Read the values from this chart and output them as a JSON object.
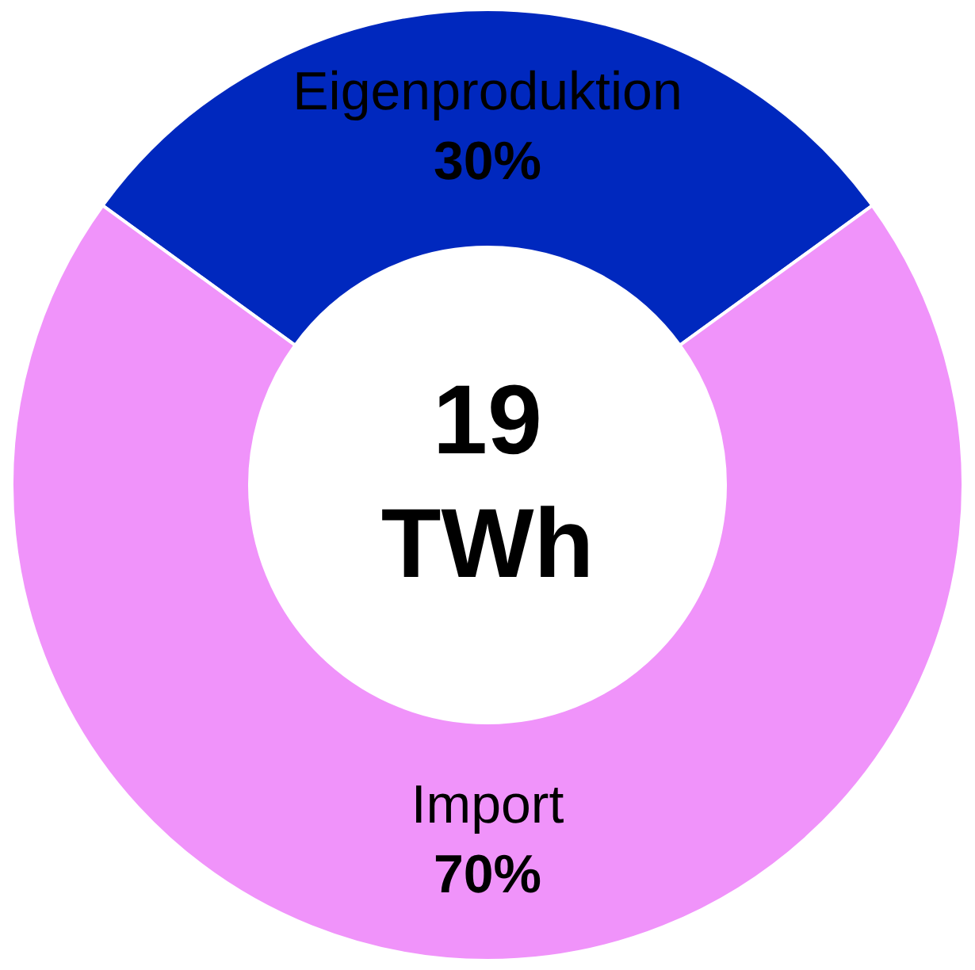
{
  "chart_data": {
    "type": "donut",
    "categories": [
      "Eigenproduktion",
      "Import"
    ],
    "values": [
      30,
      70
    ],
    "colors": [
      "#0028be",
      "#f093fa"
    ],
    "value_labels": [
      "30%",
      "70%"
    ],
    "annotations": [
      "19",
      "TWh"
    ]
  }
}
